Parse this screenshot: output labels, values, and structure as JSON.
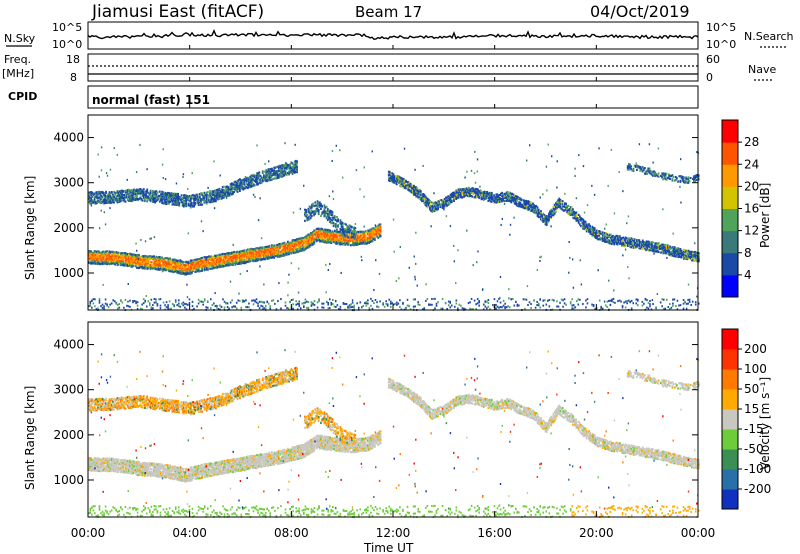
{
  "header": {
    "title": "Jiamusi East (fitACF)",
    "beam": "Beam 17",
    "date": "04/Oct/2019"
  },
  "top_panels": {
    "nsky_label": "N.Sky",
    "nsearch_label": "N.Search",
    "noise_tick_top": "10^5",
    "noise_tick_bottom": "10^0",
    "freq_label": "Freq.",
    "freq_unit": "[MHz]",
    "freq_ticks": [
      "18",
      "8"
    ],
    "nave_label": "Nave",
    "nave_ticks": [
      "60",
      "0"
    ],
    "cpid_label": "CPID",
    "cpid_value": "normal (fast) 151"
  },
  "chart_data": [
    {
      "type": "heatmap",
      "name": "power",
      "ylabel": "Slant Range [km]",
      "xlabel": "Time UT",
      "xlim_hours": [
        0,
        24
      ],
      "ylim": [
        180,
        4500
      ],
      "y_ticks": [
        "4000",
        "3000",
        "2000",
        "1000"
      ],
      "x_ticks": [
        "00:00",
        "04:00",
        "08:00",
        "12:00",
        "16:00",
        "20:00",
        "00:00"
      ],
      "colorbar": {
        "label": "Power [dB]",
        "ticks": [
          "28",
          "24",
          "20",
          "16",
          "12",
          "8",
          "4"
        ],
        "colors": [
          "#0000ff",
          "#1a49a8",
          "#3a7a7a",
          "#4fa35a",
          "#d4c400",
          "#ff9900",
          "#ff5500",
          "#ff0000"
        ]
      }
    },
    {
      "type": "heatmap",
      "name": "velocity",
      "ylabel": "Slant Range [km]",
      "xlabel": "Time UT",
      "xlim_hours": [
        0,
        24
      ],
      "ylim": [
        180,
        4500
      ],
      "y_ticks": [
        "4000",
        "3000",
        "2000",
        "1000"
      ],
      "x_ticks": [
        "00:00",
        "04:00",
        "08:00",
        "12:00",
        "16:00",
        "20:00",
        "00:00"
      ],
      "colorbar": {
        "label": "Velocity [m s⁻¹]",
        "ticks": [
          "200",
          "100",
          "50",
          "15",
          "-15",
          "-50",
          "-100",
          "-200"
        ],
        "colors": [
          "#1030c0",
          "#2a70a8",
          "#3b8f55",
          "#6ccc3a",
          "#c8c8c0",
          "#ffaa00",
          "#ff7a00",
          "#ff3300",
          "#ff0000"
        ]
      }
    }
  ],
  "bands": {
    "upper_morning": [
      [
        0,
        2700
      ],
      [
        1,
        2720
      ],
      [
        2,
        2780
      ],
      [
        3,
        2700
      ],
      [
        4,
        2620
      ],
      [
        5,
        2750
      ],
      [
        6,
        3000
      ],
      [
        7,
        3200
      ],
      [
        7.6,
        3300
      ],
      [
        8.2,
        3400
      ]
    ],
    "lower_morning": [
      [
        0,
        1400
      ],
      [
        1,
        1380
      ],
      [
        2,
        1300
      ],
      [
        3,
        1250
      ],
      [
        3.8,
        1150
      ],
      [
        4.5,
        1250
      ],
      [
        5.5,
        1350
      ],
      [
        6.5,
        1450
      ],
      [
        7.5,
        1550
      ],
      [
        8.5,
        1700
      ],
      [
        9,
        1900
      ],
      [
        9.5,
        1850
      ],
      [
        10.3,
        1800
      ],
      [
        11,
        1850
      ],
      [
        11.5,
        2000
      ]
    ],
    "gap_upper": [
      [
        8.5,
        2300
      ],
      [
        9,
        2500
      ],
      [
        9.5,
        2300
      ],
      [
        10,
        2000
      ],
      [
        10.5,
        1900
      ]
    ],
    "evening_upper": [
      [
        11.8,
        3200
      ],
      [
        12.5,
        3000
      ],
      [
        13,
        2800
      ],
      [
        13.5,
        2500
      ],
      [
        14,
        2600
      ],
      [
        14.5,
        2800
      ],
      [
        15,
        2850
      ],
      [
        16,
        2700
      ],
      [
        16.5,
        2750
      ],
      [
        17,
        2600
      ],
      [
        17.5,
        2500
      ],
      [
        18,
        2200
      ],
      [
        18.5,
        2600
      ],
      [
        19,
        2400
      ],
      [
        19.5,
        2100
      ],
      [
        20,
        1900
      ],
      [
        20.5,
        1800
      ],
      [
        21.5,
        1700
      ],
      [
        22.5,
        1600
      ],
      [
        23.5,
        1450
      ],
      [
        24,
        1400
      ]
    ],
    "late_upper": [
      [
        21.2,
        3400
      ],
      [
        22,
        3300
      ],
      [
        22.5,
        3200
      ],
      [
        23,
        3150
      ],
      [
        23.5,
        3100
      ],
      [
        24,
        3150
      ]
    ],
    "ground": [
      [
        0,
        300
      ],
      [
        24,
        300
      ]
    ]
  }
}
